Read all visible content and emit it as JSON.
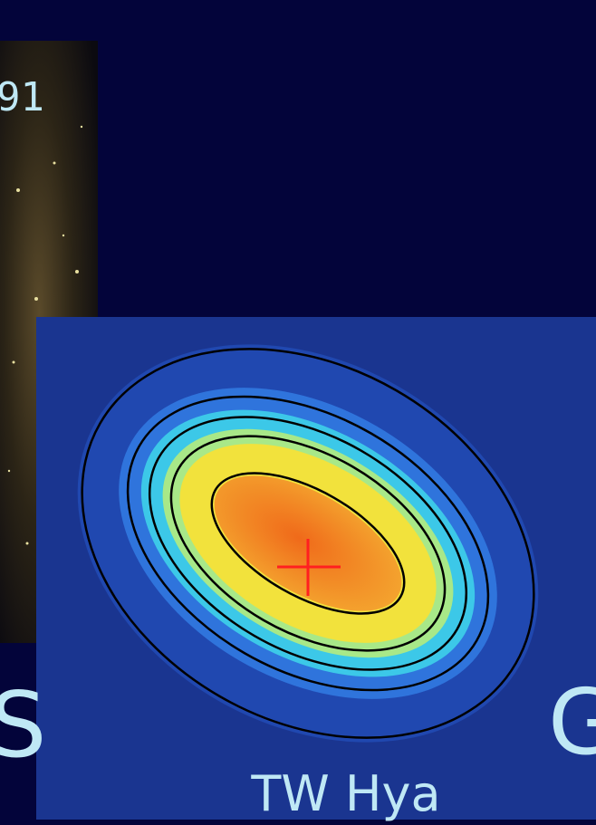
{
  "slide": {
    "partial_label_top": "91",
    "partial_label_left": "S",
    "partial_label_right": "G",
    "image_caption": "TW Hya"
  }
}
